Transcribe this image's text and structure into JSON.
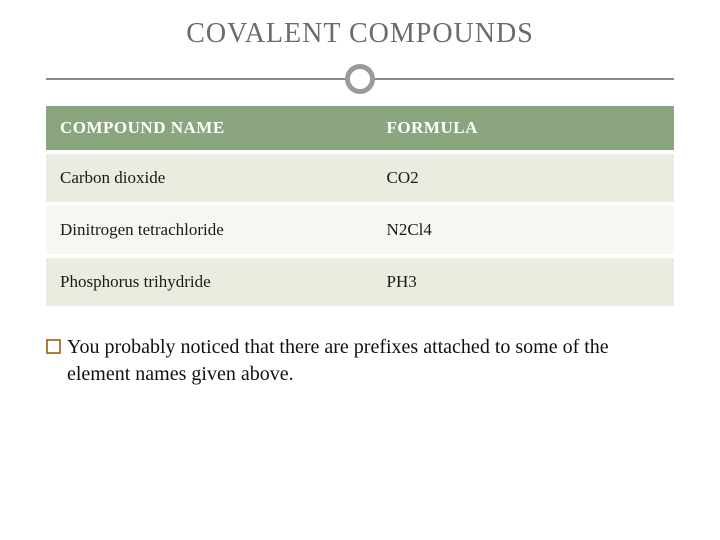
{
  "title": "COVALENT COMPOUNDS",
  "colors": {
    "title_text": "#6b6b6b",
    "divider_line": "#8a8a8a",
    "divider_circle_border": "#9a9a9a",
    "header_bg": "#8ba67f",
    "header_text": "#ffffff",
    "row_odd_bg": "#e8ede0",
    "row_even_bg": "#f5f7f0",
    "cell_text": "#1a1a1a",
    "bullet_border": "#b07a3a",
    "body_text": "#111111",
    "background": "#ffffff"
  },
  "table": {
    "columns": [
      "COMPOUND NAME",
      "FORMULA"
    ],
    "rows": [
      {
        "name": "Carbon dioxide",
        "formula": "CO2"
      },
      {
        "name": "Dinitrogen tetrachloride",
        "formula": "N2Cl4"
      },
      {
        "name": "Phosphorus trihydride",
        "formula": "PH3"
      }
    ]
  },
  "paragraph": "You probably noticed that there are prefixes attached to some of the element names given above."
}
